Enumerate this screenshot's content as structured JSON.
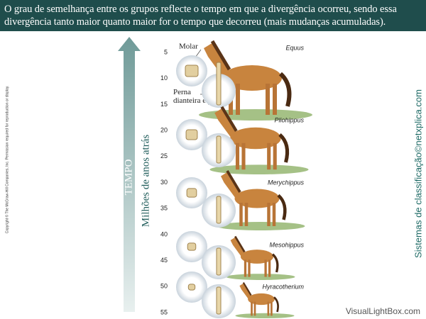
{
  "header": {
    "title": "O grau de semelhança entre os grupos reflecte o tempo em que a divergência ocorreu, sendo essa divergência tanto maior quanto maior for o tempo que decorreu (mais mudanças acumuladas)."
  },
  "copyright": "Copyright © The McGraw-Hill Companies, Inc. Permission required for reproduction or display.",
  "arrow_label": "TEMPO",
  "axis": {
    "label": "Milhões de anos atrás",
    "ticks": [
      5,
      10,
      15,
      20,
      25,
      30,
      35,
      40,
      45,
      50,
      55
    ]
  },
  "labels": {
    "molar": "Molar",
    "leg": "Perna dianteira e pé"
  },
  "horses": [
    "Equus",
    "Pliohippus",
    "Merychippus",
    "Mesohippus",
    "Hyracotherium"
  ],
  "side_credit": "Sistemas de classificação©netxplica.com",
  "watermark": "VisualLightBox.com"
}
